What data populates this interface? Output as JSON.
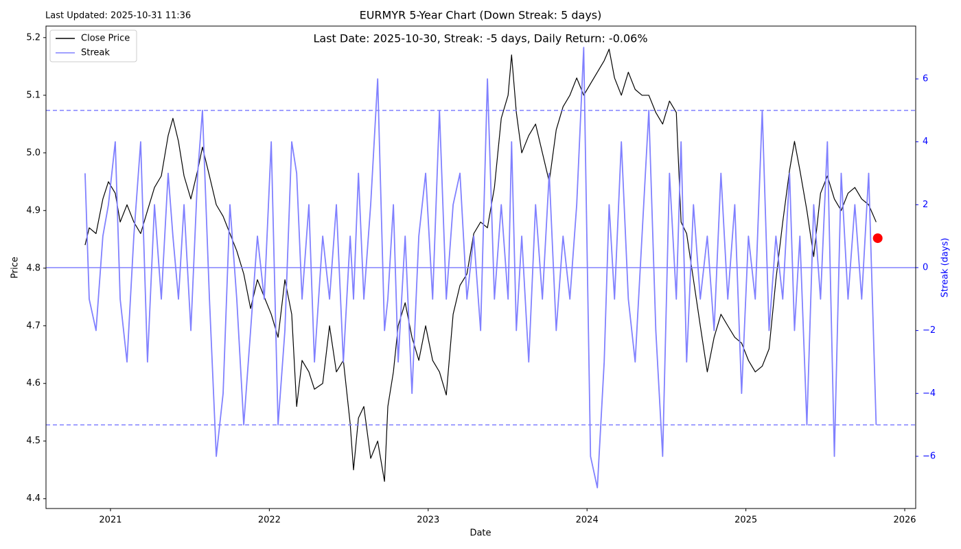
{
  "chart_data": {
    "type": "line",
    "title": "EURMYR 5-Year Chart (Down Streak: 5 days)",
    "subtitle": "Last Date: 2025-10-30, Streak: -5 days, Daily Return: -0.06%",
    "updated": "Last Updated: 2025-10-31 11:36",
    "x_label": "Date",
    "y_label": "Price",
    "y2_label": "Streak (days)",
    "legend": "upper left",
    "x": [
      2020.84,
      2020.866,
      2020.909,
      2020.952,
      2020.987,
      2021.03,
      2021.061,
      2021.104,
      2021.147,
      2021.19,
      2021.233,
      2021.277,
      2021.32,
      2021.363,
      2021.393,
      2021.428,
      2021.463,
      2021.506,
      2021.549,
      2021.579,
      2021.623,
      2021.666,
      2021.709,
      2021.752,
      2021.795,
      2021.839,
      2021.882,
      2021.925,
      2021.968,
      2022.012,
      2022.055,
      2022.098,
      2022.141,
      2022.172,
      2022.206,
      2022.249,
      2022.284,
      2022.336,
      2022.379,
      2022.422,
      2022.466,
      2022.509,
      2022.53,
      2022.561,
      2022.595,
      2022.638,
      2022.682,
      2022.725,
      2022.746,
      2022.781,
      2022.811,
      2022.855,
      2022.898,
      2022.941,
      2022.984,
      2023.028,
      2023.071,
      2023.114,
      2023.157,
      2023.2,
      2023.244,
      2023.287,
      2023.33,
      2023.373,
      2023.417,
      2023.46,
      2023.503,
      2023.525,
      2023.555,
      2023.589,
      2023.633,
      2023.676,
      2023.719,
      2023.762,
      2023.806,
      2023.849,
      2023.892,
      2023.935,
      2023.979,
      2024.022,
      2024.065,
      2024.108,
      2024.139,
      2024.173,
      2024.216,
      2024.26,
      2024.303,
      2024.346,
      2024.389,
      2024.433,
      2024.476,
      2024.519,
      2024.562,
      2024.592,
      2024.627,
      2024.67,
      2024.713,
      2024.757,
      2024.8,
      2024.843,
      2024.886,
      2024.93,
      2024.973,
      2025.016,
      2025.059,
      2025.103,
      2025.146,
      2025.189,
      2025.232,
      2025.275,
      2025.306,
      2025.34,
      2025.384,
      2025.427,
      2025.47,
      2025.513,
      2025.557,
      2025.6,
      2025.643,
      2025.686,
      2025.729,
      2025.773,
      2025.82
    ],
    "series": [
      {
        "name": "Close Price",
        "color": "#000000",
        "values": [
          4.84,
          4.87,
          4.86,
          4.92,
          4.95,
          4.93,
          4.88,
          4.91,
          4.88,
          4.86,
          4.9,
          4.94,
          4.96,
          5.03,
          5.06,
          5.02,
          4.96,
          4.92,
          4.97,
          5.01,
          4.96,
          4.91,
          4.89,
          4.86,
          4.83,
          4.79,
          4.73,
          4.78,
          4.75,
          4.72,
          4.68,
          4.78,
          4.72,
          4.56,
          4.64,
          4.62,
          4.59,
          4.6,
          4.7,
          4.62,
          4.64,
          4.53,
          4.45,
          4.54,
          4.56,
          4.47,
          4.5,
          4.43,
          4.56,
          4.62,
          4.7,
          4.74,
          4.68,
          4.64,
          4.7,
          4.64,
          4.62,
          4.58,
          4.72,
          4.77,
          4.79,
          4.86,
          4.88,
          4.87,
          4.94,
          5.06,
          5.1,
          5.17,
          5.07,
          5.0,
          5.03,
          5.05,
          5.0,
          4.95,
          5.04,
          5.08,
          5.1,
          5.13,
          5.1,
          5.12,
          5.14,
          5.16,
          5.18,
          5.13,
          5.1,
          5.14,
          5.11,
          5.1,
          5.1,
          5.07,
          5.05,
          5.09,
          5.07,
          4.88,
          4.86,
          4.78,
          4.7,
          4.62,
          4.68,
          4.72,
          4.7,
          4.68,
          4.67,
          4.64,
          4.62,
          4.63,
          4.66,
          4.78,
          4.88,
          4.97,
          5.02,
          4.97,
          4.9,
          4.82,
          4.93,
          4.96,
          4.92,
          4.9,
          4.93,
          4.94,
          4.92,
          4.91,
          4.88
        ]
      },
      {
        "name": "Streak",
        "color": "#8080ff",
        "axis": "y2",
        "values": [
          3,
          -1,
          -2,
          1,
          2,
          4,
          -1,
          -3,
          1,
          4,
          -3,
          2,
          -1,
          3,
          1,
          -1,
          2,
          -2,
          3,
          5,
          -1,
          -6,
          -4,
          2,
          -1,
          -5,
          -2,
          1,
          -1,
          4,
          -5,
          -2,
          4,
          3,
          -1,
          2,
          -3,
          1,
          -1,
          2,
          -3,
          1,
          -1,
          3,
          -1,
          2,
          6,
          -2,
          -1,
          2,
          -3,
          1,
          -4,
          1,
          3,
          -1,
          5,
          -1,
          2,
          3,
          -1,
          1,
          -2,
          6,
          -1,
          2,
          -1,
          4,
          -2,
          1,
          -3,
          2,
          -1,
          3,
          -2,
          1,
          -1,
          2,
          7,
          -6,
          -7,
          -3,
          2,
          -1,
          4,
          -1,
          -3,
          1,
          5,
          -2,
          -6,
          3,
          -1,
          4,
          -3,
          2,
          -1,
          1,
          -2,
          3,
          -1,
          2,
          -4,
          1,
          -1,
          5,
          -2,
          1,
          -1,
          3,
          -2,
          1,
          -5,
          2,
          -1,
          4,
          -6,
          3,
          -1,
          2,
          -1,
          3,
          -5
        ]
      }
    ],
    "last_point": {
      "x": 2025.83,
      "y": 4.852,
      "color": "#ff0000"
    },
    "reference_lines": [
      {
        "value": 5,
        "style": "dashed"
      },
      {
        "value": -5,
        "style": "dashed"
      },
      {
        "value": 0,
        "style": "solid"
      }
    ],
    "xlim": [
      2020.594,
      2026.069
    ],
    "xticks": [
      2021,
      2022,
      2023,
      2024,
      2025,
      2026
    ],
    "ylim": [
      4.383,
      5.22
    ],
    "yticks": [
      4.4,
      4.5,
      4.6,
      4.7,
      4.8,
      4.9,
      {
        "value": 5,
        "label": "5.0"
      },
      5.1,
      5.2
    ],
    "y2lim": [
      -7.66,
      7.68
    ],
    "y2ticks": [
      {
        "value": -6,
        "label": "−6"
      },
      {
        "value": -4,
        "label": "−4"
      },
      {
        "value": -2,
        "label": "−2"
      },
      0,
      2,
      4,
      6
    ],
    "y2_color": "#0000ff"
  }
}
